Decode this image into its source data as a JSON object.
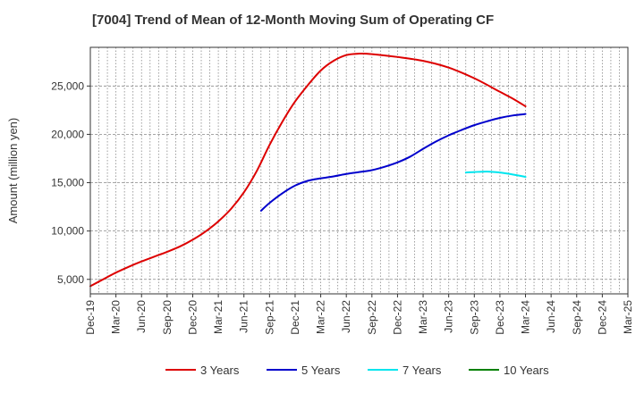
{
  "chart_data": {
    "type": "line",
    "title": "[7004]  Trend of Mean of 12-Month Moving Sum of Operating CF",
    "xlabel": "",
    "ylabel": "Amount (million yen)",
    "ylim": [
      3500,
      29000
    ],
    "yticks": [
      5000,
      10000,
      15000,
      20000,
      25000
    ],
    "ytick_labels": [
      "5,000",
      "10,000",
      "15,000",
      "20,000",
      "25,000"
    ],
    "x_categories": [
      "Dec-19",
      "Mar-20",
      "Jun-20",
      "Sep-20",
      "Dec-20",
      "Mar-21",
      "Jun-21",
      "Sep-21",
      "Dec-21",
      "Mar-22",
      "Jun-22",
      "Sep-22",
      "Dec-22",
      "Mar-23",
      "Jun-23",
      "Sep-23",
      "Dec-23",
      "Mar-24",
      "Jun-24",
      "Sep-24",
      "Dec-24",
      "Mar-25"
    ],
    "grid": true,
    "legend_position": "bottom",
    "series": [
      {
        "name": "3 Years",
        "color": "#dd0000",
        "points": [
          [
            0,
            4300
          ],
          [
            0.5,
            5000
          ],
          [
            1,
            5700
          ],
          [
            1.5,
            6300
          ],
          [
            2,
            6850
          ],
          [
            2.5,
            7350
          ],
          [
            3,
            7850
          ],
          [
            3.5,
            8400
          ],
          [
            4,
            9100
          ],
          [
            4.5,
            9950
          ],
          [
            5,
            11000
          ],
          [
            5.5,
            12300
          ],
          [
            6,
            14000
          ],
          [
            6.5,
            16200
          ],
          [
            7,
            18900
          ],
          [
            7.5,
            21300
          ],
          [
            8,
            23400
          ],
          [
            8.5,
            25100
          ],
          [
            9,
            26600
          ],
          [
            9.5,
            27600
          ],
          [
            10,
            28200
          ],
          [
            10.5,
            28350
          ],
          [
            11,
            28300
          ],
          [
            12,
            28000
          ],
          [
            13,
            27600
          ],
          [
            14,
            26900
          ],
          [
            15,
            25800
          ],
          [
            16,
            24400
          ],
          [
            16.5,
            23700
          ],
          [
            17,
            22900
          ]
        ]
      },
      {
        "name": "5 Years",
        "color": "#0000cc",
        "points": [
          [
            6.67,
            12100
          ],
          [
            7,
            12900
          ],
          [
            7.5,
            13900
          ],
          [
            8,
            14700
          ],
          [
            8.5,
            15200
          ],
          [
            9,
            15450
          ],
          [
            9.5,
            15650
          ],
          [
            10,
            15900
          ],
          [
            10.5,
            16100
          ],
          [
            11,
            16300
          ],
          [
            11.5,
            16650
          ],
          [
            12,
            17100
          ],
          [
            12.5,
            17700
          ],
          [
            13,
            18500
          ],
          [
            13.5,
            19250
          ],
          [
            14,
            19900
          ],
          [
            14.5,
            20450
          ],
          [
            15,
            20950
          ],
          [
            15.5,
            21350
          ],
          [
            16,
            21700
          ],
          [
            16.5,
            21950
          ],
          [
            17,
            22100
          ]
        ]
      },
      {
        "name": "7 Years",
        "color": "#00e5ee",
        "points": [
          [
            14.67,
            16050
          ],
          [
            15,
            16100
          ],
          [
            15.5,
            16150
          ],
          [
            16,
            16050
          ],
          [
            16.5,
            15850
          ],
          [
            17,
            15600
          ]
        ]
      },
      {
        "name": "10 Years",
        "color": "#008000",
        "points": []
      }
    ]
  }
}
